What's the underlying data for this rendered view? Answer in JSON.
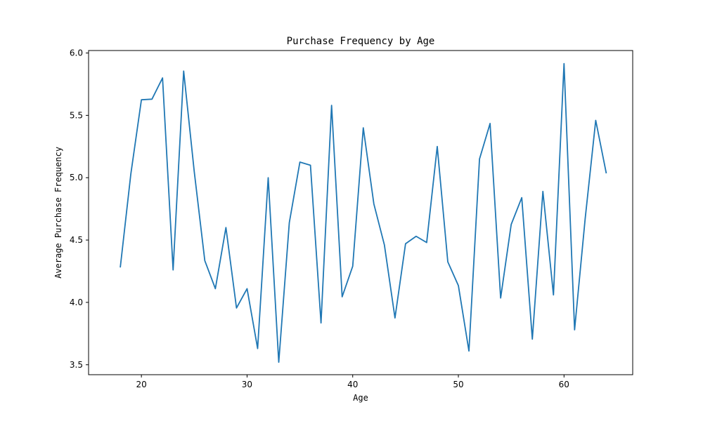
{
  "chart_data": {
    "type": "line",
    "title": "Purchase Frequency by Age",
    "xlabel": "Age",
    "ylabel": "Average Purchase Frequency",
    "xlim": [
      15,
      66.5
    ],
    "ylim": [
      3.42,
      6.02
    ],
    "xticks": [
      20,
      30,
      40,
      50,
      60
    ],
    "xtick_labels": [
      "20",
      "30",
      "40",
      "50",
      "60"
    ],
    "yticks": [
      3.5,
      4.0,
      4.5,
      5.0,
      5.5,
      6.0
    ],
    "ytick_labels": [
      "3.5",
      "4.0",
      "4.5",
      "5.0",
      "5.5",
      "6.0"
    ],
    "grid": false,
    "series": [
      {
        "color": "#1f77b4",
        "x": [
          18,
          19,
          20,
          21,
          22,
          23,
          24,
          25,
          26,
          27,
          28,
          29,
          30,
          31,
          32,
          33,
          34,
          35,
          36,
          37,
          38,
          39,
          40,
          41,
          42,
          43,
          44,
          45,
          46,
          47,
          48,
          49,
          50,
          51,
          52,
          53,
          54,
          55,
          56,
          57,
          58,
          59,
          60,
          61,
          62,
          63,
          64
        ],
        "y": [
          4.28,
          5.03,
          5.625,
          5.63,
          5.8,
          4.26,
          5.855,
          5.05,
          4.335,
          4.11,
          4.6,
          3.955,
          4.11,
          3.63,
          5.0,
          3.52,
          4.64,
          5.125,
          5.1,
          3.835,
          5.58,
          4.045,
          4.29,
          5.4,
          4.79,
          4.46,
          3.875,
          4.47,
          4.53,
          4.48,
          5.25,
          4.325,
          4.135,
          3.61,
          5.15,
          5.435,
          4.035,
          4.625,
          4.84,
          3.705,
          4.89,
          4.06,
          5.915,
          3.78,
          4.67,
          5.46,
          5.035
        ]
      }
    ]
  }
}
